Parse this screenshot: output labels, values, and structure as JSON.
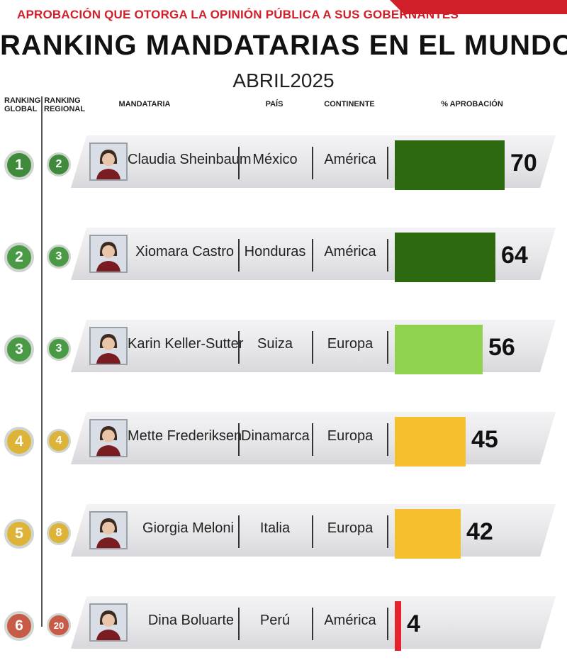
{
  "header": {
    "eyebrow": "APROBACIÓN QUE OTORGA LA OPINIÓN PÚBLICA A SUS GOBERNANTES",
    "title": "RANKING MANDATARIAS EN EL MUNDO",
    "subtitle": "ABRIL2025"
  },
  "columns": {
    "global_rank": "RANKING\nGLOBAL",
    "regional_rank": "RANKING\nREGIONAL",
    "name": "MANDATARIA",
    "country": "PAÍS",
    "continent": "CONTINENTE",
    "approval": "% APROBACIÓN"
  },
  "colors": {
    "brand_red": "#d11f2a",
    "dark_green": "#2d6a0f",
    "light_green": "#8fd24f",
    "yellow": "#f5bf2d",
    "red": "#e3232d",
    "badge_green": "#3f8a3b",
    "badge_gold": "#ddb33a",
    "badge_red": "#c85b47"
  },
  "chart_data": {
    "type": "bar",
    "title": "RANKING MANDATARIAS EN EL MUNDO",
    "subtitle": "ABRIL2025",
    "xlabel": "",
    "ylabel": "% APROBACIÓN",
    "ylim": [
      0,
      100
    ],
    "categories": [
      "Claudia Sheinbaum",
      "Xiomara Castro",
      "Karin Keller-Sutter",
      "Mette Frederiksen",
      "Giorgia Meloni",
      "Dina Boluarte"
    ],
    "values": [
      70,
      64,
      56,
      45,
      42,
      4
    ]
  },
  "rows": [
    {
      "global": "1",
      "regional": "2",
      "name": "Claudia Sheinbaum",
      "country": "México",
      "continent": "América",
      "value": 70,
      "value_label": "70",
      "bar_color": "#2d6a0f",
      "badge_color": "#3f8a3b",
      "avatar": "female-avatar-icon"
    },
    {
      "global": "2",
      "regional": "3",
      "name": "Xiomara Castro",
      "country": "Honduras",
      "continent": "América",
      "value": 64,
      "value_label": "64",
      "bar_color": "#2d6a0f",
      "badge_color": "#4a9a45",
      "avatar": "female-avatar-icon"
    },
    {
      "global": "3",
      "regional": "3",
      "name": "Karin Keller-Sutter",
      "country": "Suiza",
      "continent": "Europa",
      "value": 56,
      "value_label": "56",
      "bar_color": "#8fd24f",
      "badge_color": "#4a9a45",
      "avatar": "female-avatar-icon"
    },
    {
      "global": "4",
      "regional": "4",
      "name": "Mette Frederiksen",
      "country": "Dinamarca",
      "continent": "Europa",
      "value": 45,
      "value_label": "45",
      "bar_color": "#f5bf2d",
      "badge_color": "#ddb33a",
      "avatar": "female-avatar-icon"
    },
    {
      "global": "5",
      "regional": "8",
      "name": "Giorgia Meloni",
      "country": "Italia",
      "continent": "Europa",
      "value": 42,
      "value_label": "42",
      "bar_color": "#f5bf2d",
      "badge_color": "#ddb33a",
      "avatar": "female-avatar-icon"
    },
    {
      "global": "6",
      "regional": "20",
      "name": "Dina Boluarte",
      "country": "Perú",
      "continent": "América",
      "value": 4,
      "value_label": "4",
      "bar_color": "#e3232d",
      "badge_color": "#c85b47",
      "avatar": "female-avatar-icon"
    }
  ]
}
